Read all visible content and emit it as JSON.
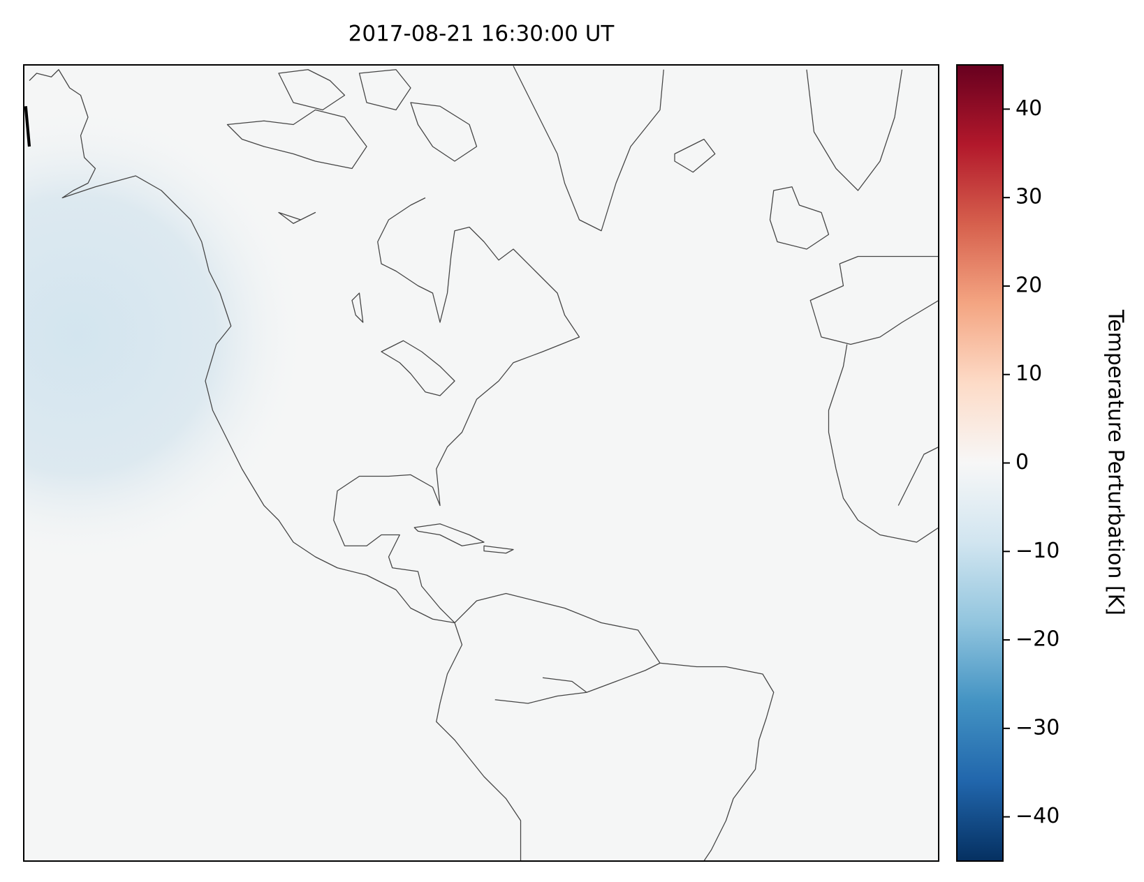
{
  "chart_data": {
    "type": "map",
    "title": "2017-08-21 16:30:00 UT",
    "colorbar_label": "Temperature Perturbation [K]",
    "clim": [
      -45,
      45
    ],
    "cticks": [
      {
        "value": -40,
        "label": "−40"
      },
      {
        "value": -30,
        "label": "−30"
      },
      {
        "value": -20,
        "label": "−20"
      },
      {
        "value": -10,
        "label": "−10"
      },
      0,
      10,
      20,
      30,
      40
    ],
    "colormap": [
      "#053061",
      "#2166ac",
      "#4393c3",
      "#92c5de",
      "#d1e5f0",
      "#f7f7f7",
      "#fddbc7",
      "#f4a582",
      "#d6604d",
      "#b2182b",
      "#67001f"
    ]
  }
}
